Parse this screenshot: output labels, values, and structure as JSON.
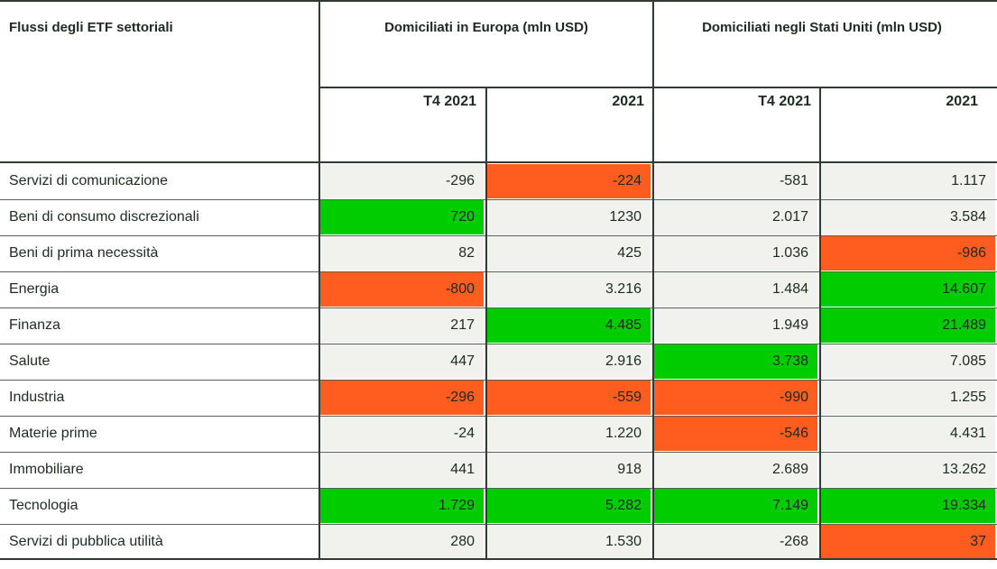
{
  "header": {
    "title": "Flussi degli ETF settoriali",
    "group_europe": "Domiciliati in Europa (mln USD)",
    "group_us": "Domiciliati negli Stati Uniti (mln USD)",
    "cols": [
      "T4 2021",
      "2021",
      "T4 2021",
      "2021"
    ]
  },
  "colors": {
    "neutral": "#f1f1ee",
    "positive": "#00cc00",
    "negative": "#ff5c1f"
  },
  "rows": [
    {
      "label": "Servizi di comunicazione",
      "values": [
        "-296",
        "-224",
        "-581",
        "1.117"
      ],
      "highlight": [
        "",
        "neg",
        "",
        ""
      ]
    },
    {
      "label": "Beni di consumo discrezionali",
      "values": [
        "720",
        "1230",
        "2.017",
        "3.584"
      ],
      "highlight": [
        "pos",
        "",
        "",
        ""
      ]
    },
    {
      "label": "Beni di prima necessità",
      "values": [
        "82",
        "425",
        "1.036",
        "-986"
      ],
      "highlight": [
        "",
        "",
        "",
        "neg"
      ]
    },
    {
      "label": "Energia",
      "values": [
        "-800",
        "3.216",
        "1.484",
        "14.607"
      ],
      "highlight": [
        "neg",
        "",
        "",
        "pos"
      ]
    },
    {
      "label": "Finanza",
      "values": [
        "217",
        "4.485",
        "1.949",
        "21.489"
      ],
      "highlight": [
        "",
        "pos",
        "",
        "pos"
      ]
    },
    {
      "label": "Salute",
      "values": [
        "447",
        "2.916",
        "3.738",
        "7.085"
      ],
      "highlight": [
        "",
        "",
        "pos",
        ""
      ]
    },
    {
      "label": "Industria",
      "values": [
        "-296",
        "-559",
        "-990",
        "1.255"
      ],
      "highlight": [
        "neg",
        "neg",
        "neg",
        ""
      ]
    },
    {
      "label": "Materie prime",
      "values": [
        "-24",
        "1.220",
        "-546",
        "4.431"
      ],
      "highlight": [
        "",
        "",
        "neg",
        ""
      ]
    },
    {
      "label": "Immobiliare",
      "values": [
        "441",
        "918",
        "2.689",
        "13.262"
      ],
      "highlight": [
        "",
        "",
        "",
        ""
      ]
    },
    {
      "label": "Tecnologia",
      "values": [
        "1.729",
        "5.282",
        "7.149",
        "19.334"
      ],
      "highlight": [
        "pos",
        "pos",
        "pos",
        "pos"
      ]
    },
    {
      "label": "Servizi di pubblica utilità",
      "values": [
        "280",
        "1.530",
        "-268",
        "37"
      ],
      "highlight": [
        "",
        "",
        "",
        "neg"
      ]
    }
  ]
}
